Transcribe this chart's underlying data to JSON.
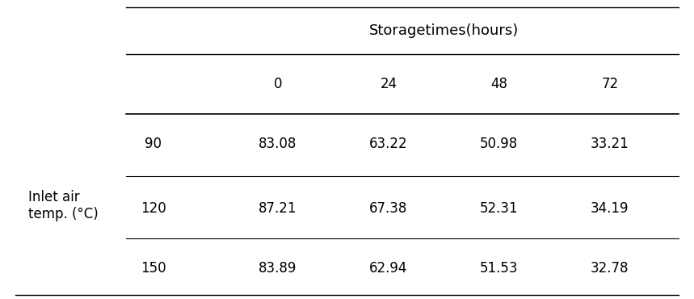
{
  "title": "Storagetimes(hours)",
  "col_headers": [
    "0",
    "24",
    "48",
    "72"
  ],
  "row_label_group": "Inlet air\ntemp. (°C)",
  "row_labels": [
    "90",
    "120",
    "150"
  ],
  "values": [
    [
      83.08,
      63.22,
      50.98,
      33.21
    ],
    [
      87.21,
      67.38,
      52.31,
      34.19
    ],
    [
      83.89,
      62.94,
      51.53,
      32.78
    ]
  ],
  "background_color": "#ffffff",
  "text_color": "#000000",
  "font_size": 12,
  "title_font_size": 13
}
